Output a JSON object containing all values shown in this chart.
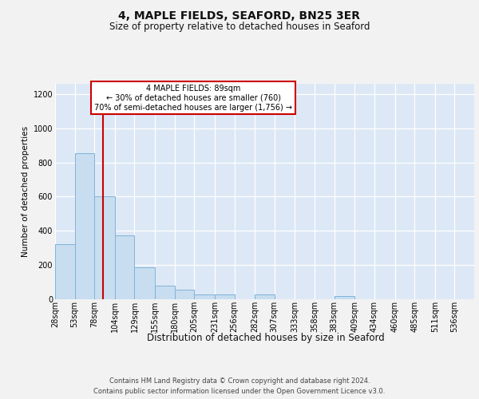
{
  "title": "4, MAPLE FIELDS, SEAFORD, BN25 3ER",
  "subtitle": "Size of property relative to detached houses in Seaford",
  "xlabel": "Distribution of detached houses by size in Seaford",
  "ylabel": "Number of detached properties",
  "footer_line1": "Contains HM Land Registry data © Crown copyright and database right 2024.",
  "footer_line2": "Contains public sector information licensed under the Open Government Licence v3.0.",
  "categories": [
    "28sqm",
    "53sqm",
    "78sqm",
    "104sqm",
    "129sqm",
    "155sqm",
    "180sqm",
    "205sqm",
    "231sqm",
    "256sqm",
    "282sqm",
    "307sqm",
    "333sqm",
    "358sqm",
    "383sqm",
    "409sqm",
    "434sqm",
    "460sqm",
    "485sqm",
    "511sqm",
    "536sqm"
  ],
  "values": [
    320,
    855,
    600,
    375,
    185,
    80,
    55,
    30,
    30,
    0,
    30,
    0,
    0,
    0,
    20,
    0,
    0,
    0,
    0,
    0,
    0
  ],
  "bar_color": "#c8ddf0",
  "bar_edge_color": "#7fb3d8",
  "plot_bg_color": "#dce8f5",
  "fig_bg_color": "#f2f2f2",
  "grid_color": "#ffffff",
  "ylim_max": 1260,
  "yticks": [
    0,
    200,
    400,
    600,
    800,
    1000,
    1200
  ],
  "property_size": 89,
  "property_label": "4 MAPLE FIELDS: 89sqm",
  "annotation_line1": "← 30% of detached houses are smaller (760)",
  "annotation_line2": "70% of semi-detached houses are larger (1,756) →",
  "red_line_color": "#cc0000",
  "bin_edges": [
    28,
    53,
    78,
    104,
    129,
    155,
    180,
    205,
    231,
    256,
    282,
    307,
    333,
    358,
    383,
    409,
    434,
    460,
    485,
    511,
    536,
    561
  ],
  "title_fontsize": 10,
  "subtitle_fontsize": 8.5,
  "ylabel_fontsize": 7.5,
  "xlabel_fontsize": 8.5,
  "tick_fontsize": 7,
  "annot_fontsize": 7,
  "footer_fontsize": 6
}
